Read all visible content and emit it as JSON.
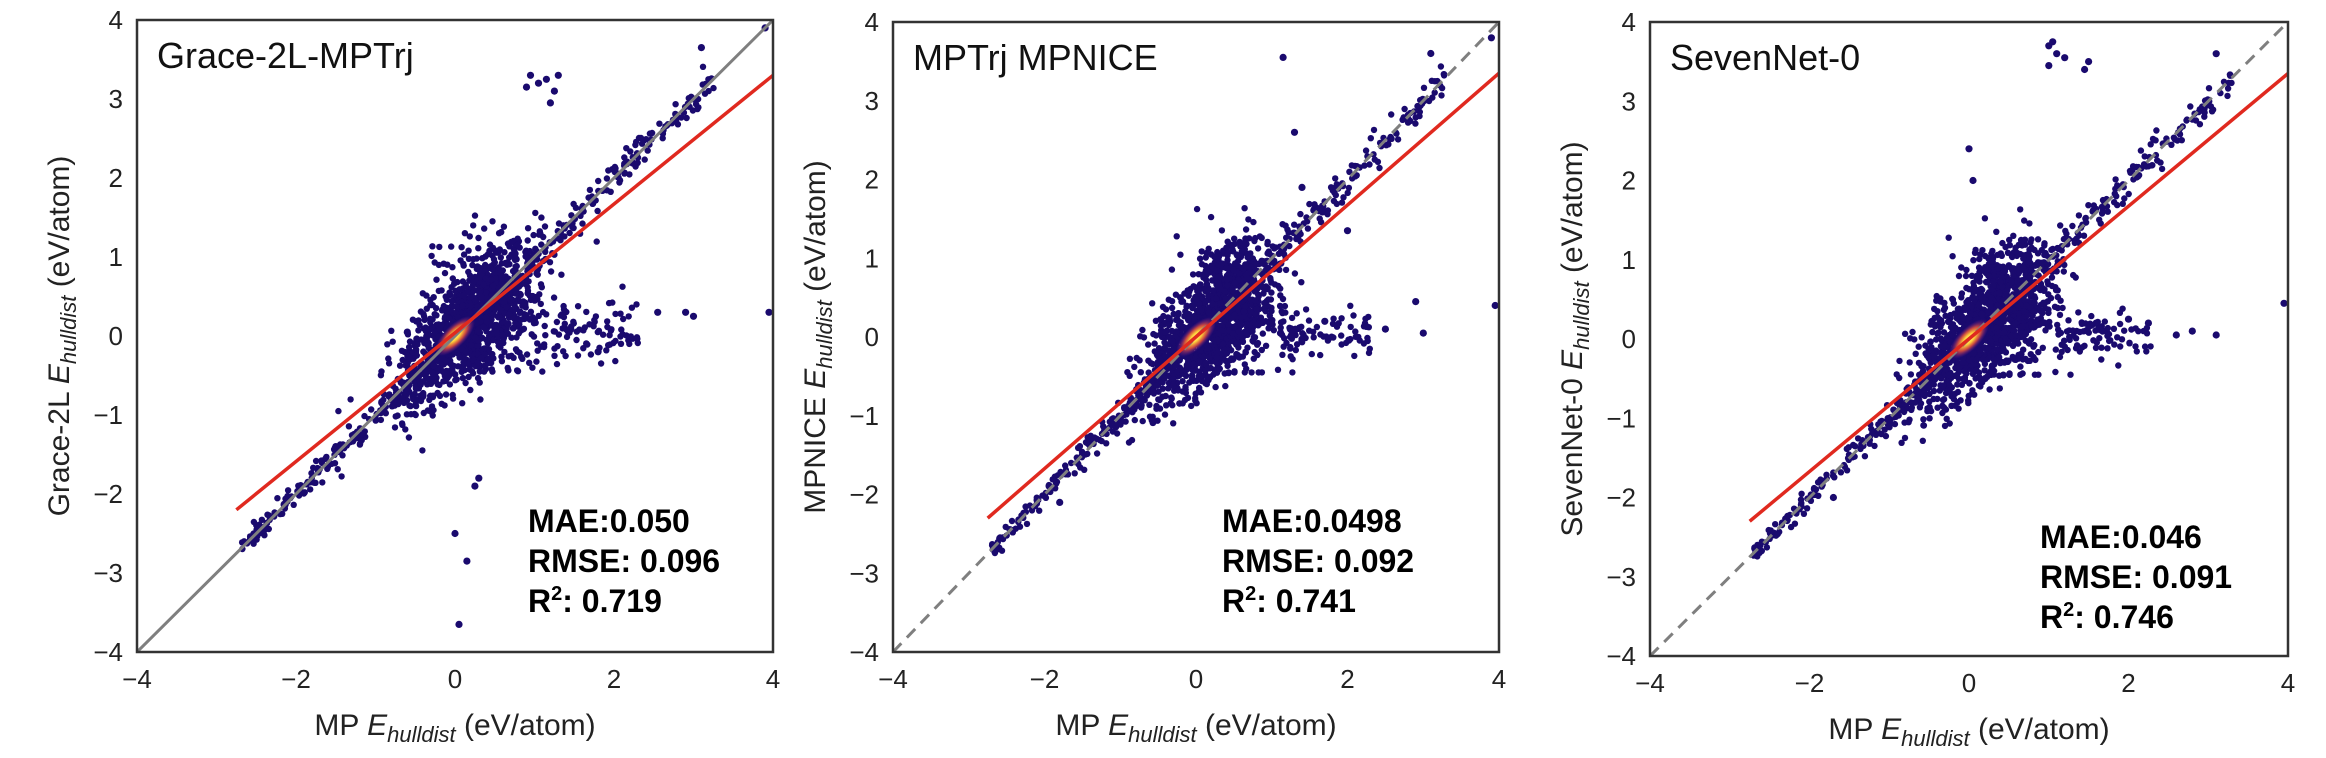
{
  "colors": {
    "identity_line": "#7f7f7f",
    "fit_line": "#e0291f",
    "point": "#1a0a6e",
    "hot_core": "#ffd23a",
    "frame": "#333333"
  },
  "chart_data": [
    {
      "type": "scatter",
      "title": "Grace-2L-MPTrj",
      "xlabel": "MP E_hulldist (eV/atom)",
      "xlabel_parts": {
        "prefix": "MP ",
        "symbol": "E",
        "subscript": "hulldist",
        "suffix": " (eV/atom)"
      },
      "ylabel": "Grace-2L E_hulldist (eV/atom)",
      "ylabel_parts": {
        "prefix": "Grace-2L ",
        "symbol": "E",
        "subscript": "hulldist",
        "suffix": " (eV/atom)"
      },
      "xlim": [
        -4,
        4
      ],
      "ylim": [
        -4,
        4
      ],
      "xticks": [
        "−4",
        "−2",
        "0",
        "2",
        "4"
      ],
      "yticks": [
        "−4",
        "−3",
        "−2",
        "−1",
        "0",
        "1",
        "2",
        "3",
        "4"
      ],
      "identity_line": {
        "x": [
          -4,
          4
        ],
        "y": [
          -4,
          4
        ],
        "style": "solid"
      },
      "fit_line": {
        "x": [
          -2.75,
          4
        ],
        "y": [
          -2.2,
          3.3
        ]
      },
      "stats": {
        "mae": "MAE:0.050",
        "rmse": "RMSE: 0.096",
        "r2_label": "R",
        "r2_sup": "2",
        "r2_value": ": 0.719"
      },
      "outliers": [
        [
          0.95,
          3.3
        ],
        [
          1.05,
          3.2
        ],
        [
          1.15,
          3.25
        ],
        [
          1.25,
          3.1
        ],
        [
          1.3,
          3.3
        ],
        [
          0.9,
          3.15
        ],
        [
          1.2,
          2.95
        ],
        [
          3.1,
          3.65
        ],
        [
          3.9,
          3.9
        ],
        [
          2.9,
          0.3
        ],
        [
          3.0,
          0.25
        ],
        [
          3.95,
          0.3
        ],
        [
          2.55,
          0.3
        ],
        [
          0.3,
          -1.8
        ],
        [
          0.25,
          -1.9
        ],
        [
          0.0,
          -2.5
        ],
        [
          0.15,
          -2.85
        ],
        [
          0.05,
          -3.65
        ],
        [
          -0.6,
          0.05
        ],
        [
          -1.5,
          -1.4
        ],
        [
          1.8,
          -0.2
        ]
      ]
    },
    {
      "type": "scatter",
      "title": "MPTrj MPNICE",
      "xlabel": "MP E_hulldist (eV/atom)",
      "xlabel_parts": {
        "prefix": "MP ",
        "symbol": "E",
        "subscript": "hulldist",
        "suffix": " (eV/atom)"
      },
      "ylabel": "MPNICE E_hulldist (eV/atom)",
      "ylabel_parts": {
        "prefix": "MPNICE ",
        "symbol": "E",
        "subscript": "hulldist",
        "suffix": " (eV/atom)"
      },
      "xlim": [
        -4,
        4
      ],
      "ylim": [
        -4,
        4
      ],
      "xticks": [
        "−4",
        "−2",
        "0",
        "2",
        "4"
      ],
      "yticks": [
        "−4",
        "−3",
        "−2",
        "−1",
        "0",
        "1",
        "2",
        "3",
        "4"
      ],
      "identity_line": {
        "x": [
          -4,
          4
        ],
        "y": [
          -4,
          4
        ],
        "style": "dashed"
      },
      "fit_line": {
        "x": [
          -2.75,
          4
        ],
        "y": [
          -2.3,
          3.35
        ]
      },
      "stats": {
        "mae": "MAE:0.0498",
        "rmse": "RMSE: 0.092",
        "r2_label": "R",
        "r2_sup": "2",
        "r2_value": ": 0.741"
      },
      "outliers": [
        [
          1.15,
          3.55
        ],
        [
          1.3,
          2.6
        ],
        [
          3.1,
          3.6
        ],
        [
          3.9,
          3.8
        ],
        [
          2.0,
          1.35
        ],
        [
          2.9,
          0.45
        ],
        [
          3.95,
          0.4
        ],
        [
          3.0,
          0.05
        ],
        [
          2.5,
          0.1
        ],
        [
          1.7,
          0.2
        ],
        [
          -0.5,
          -0.2
        ],
        [
          -1.8,
          -2.1
        ],
        [
          0.05,
          -0.5
        ],
        [
          1.4,
          1.9
        ]
      ]
    },
    {
      "type": "scatter",
      "title": "SevenNet-0",
      "xlabel": "MP E_hulldist (eV/atom)",
      "xlabel_parts": {
        "prefix": "MP ",
        "symbol": "E",
        "subscript": "hulldist",
        "suffix": " (eV/atom)"
      },
      "ylabel": "SevenNet-0 E_hulldist (eV/atom)",
      "ylabel_parts": {
        "prefix": "SevenNet-0 ",
        "symbol": "E",
        "subscript": "hulldist",
        "suffix": " (eV/atom)"
      },
      "xlim": [
        -4,
        4
      ],
      "ylim": [
        -4,
        4
      ],
      "xticks": [
        "−4",
        "−2",
        "0",
        "2",
        "4"
      ],
      "yticks": [
        "−4",
        "−3",
        "−2",
        "−1",
        "0",
        "1",
        "2",
        "3",
        "4"
      ],
      "identity_line": {
        "x": [
          -4,
          4
        ],
        "y": [
          -4,
          4
        ],
        "style": "dashed"
      },
      "fit_line": {
        "x": [
          -2.75,
          4
        ],
        "y": [
          -2.3,
          3.35
        ]
      },
      "stats": {
        "mae": "MAE:0.046",
        "rmse": "RMSE: 0.091",
        "r2_label": "R",
        "r2_sup": "2",
        "r2_value": ": 0.746"
      },
      "outliers": [
        [
          1.0,
          3.7
        ],
        [
          1.05,
          3.75
        ],
        [
          1.1,
          3.6
        ],
        [
          1.2,
          3.55
        ],
        [
          1.0,
          3.45
        ],
        [
          1.45,
          3.4
        ],
        [
          1.5,
          3.5
        ],
        [
          0.0,
          2.4
        ],
        [
          0.05,
          2.0
        ],
        [
          3.1,
          3.6
        ],
        [
          3.95,
          0.45
        ],
        [
          2.25,
          0.2
        ],
        [
          2.0,
          0.25
        ],
        [
          2.6,
          0.05
        ],
        [
          3.1,
          0.05
        ],
        [
          2.8,
          0.1
        ],
        [
          -0.4,
          -0.3
        ],
        [
          -1.7,
          -2.0
        ],
        [
          0.2,
          -0.5
        ]
      ]
    }
  ]
}
